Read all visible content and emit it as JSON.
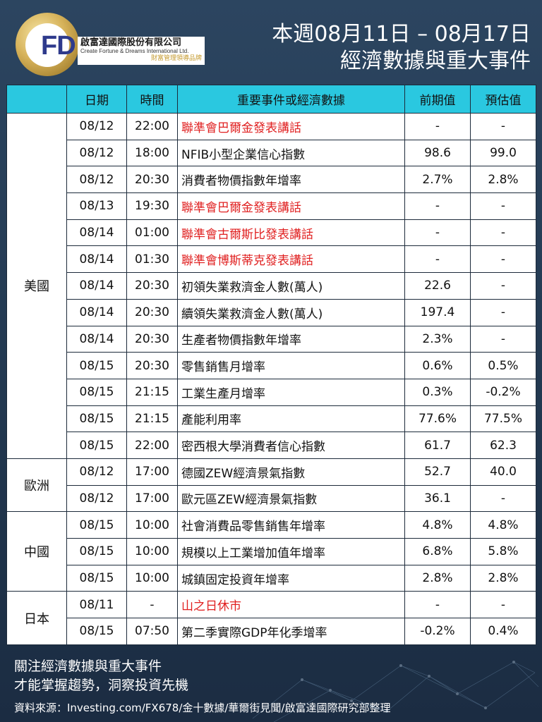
{
  "header": {
    "logo_letters": "FD",
    "company_cn": "啟富達國際股份有限公司",
    "company_en": "Create Fortune & Dreams International Ltd.",
    "company_tag": "財富管理領導品牌",
    "title_line1": "本週08月11日 – 08月17日",
    "title_line2": "經濟數據與重大事件"
  },
  "table": {
    "headers": [
      "日期",
      "時間",
      "重要事件或經濟數據",
      "前期值",
      "預估值"
    ],
    "groups": [
      {
        "region": "美國",
        "rows": [
          {
            "date": "08/12",
            "time": "22:00",
            "event": "聯準會巴爾金發表講話",
            "prev": "-",
            "est": "-",
            "highlight": true
          },
          {
            "date": "08/12",
            "time": "18:00",
            "event": "NFIB小型企業信心指數",
            "prev": "98.6",
            "est": "99.0",
            "highlight": false
          },
          {
            "date": "08/12",
            "time": "20:30",
            "event": "消費者物價指數年增率",
            "prev": "2.7%",
            "est": "2.8%",
            "highlight": false
          },
          {
            "date": "08/13",
            "time": "19:30",
            "event": "聯準會巴爾金發表講話",
            "prev": "-",
            "est": "-",
            "highlight": true
          },
          {
            "date": "08/14",
            "time": "01:00",
            "event": "聯準會古爾斯比發表講話",
            "prev": "-",
            "est": "-",
            "highlight": true
          },
          {
            "date": "08/14",
            "time": "01:30",
            "event": "聯準會博斯蒂克發表講話",
            "prev": "-",
            "est": "-",
            "highlight": true
          },
          {
            "date": "08/14",
            "time": "20:30",
            "event": "初領失業救濟金人數(萬人)",
            "prev": "22.6",
            "est": "-",
            "highlight": false
          },
          {
            "date": "08/14",
            "time": "20:30",
            "event": "續領失業救濟金人數(萬人)",
            "prev": "197.4",
            "est": "-",
            "highlight": false
          },
          {
            "date": "08/14",
            "time": "20:30",
            "event": "生產者物價指數年增率",
            "prev": "2.3%",
            "est": "-",
            "highlight": false
          },
          {
            "date": "08/15",
            "time": "20:30",
            "event": "零售銷售月增率",
            "prev": "0.6%",
            "est": "0.5%",
            "highlight": false
          },
          {
            "date": "08/15",
            "time": "21:15",
            "event": "工業生產月增率",
            "prev": "0.3%",
            "est": "-0.2%",
            "highlight": false
          },
          {
            "date": "08/15",
            "time": "21:15",
            "event": "產能利用率",
            "prev": "77.6%",
            "est": "77.5%",
            "highlight": false
          },
          {
            "date": "08/15",
            "time": "22:00",
            "event": "密西根大學消費者信心指數",
            "prev": "61.7",
            "est": "62.3",
            "highlight": false
          }
        ]
      },
      {
        "region": "歐洲",
        "rows": [
          {
            "date": "08/12",
            "time": "17:00",
            "event": "德國ZEW經濟景氣指數",
            "prev": "52.7",
            "est": "40.0",
            "highlight": false
          },
          {
            "date": "08/12",
            "time": "17:00",
            "event": "歐元區ZEW經濟景氣指數",
            "prev": "36.1",
            "est": "-",
            "highlight": false
          }
        ]
      },
      {
        "region": "中國",
        "rows": [
          {
            "date": "08/15",
            "time": "10:00",
            "event": "社會消費品零售銷售年增率",
            "prev": "4.8%",
            "est": "4.8%",
            "highlight": false
          },
          {
            "date": "08/15",
            "time": "10:00",
            "event": "規模以上工業增加值年增率",
            "prev": "6.8%",
            "est": "5.8%",
            "highlight": false
          },
          {
            "date": "08/15",
            "time": "10:00",
            "event": "城鎮固定投資年增率",
            "prev": "2.8%",
            "est": "2.8%",
            "highlight": false
          }
        ]
      },
      {
        "region": "日本",
        "rows": [
          {
            "date": "08/11",
            "time": "-",
            "event": "山之日休市",
            "prev": "-",
            "est": "-",
            "highlight": true
          },
          {
            "date": "08/15",
            "time": "07:50",
            "event": "第二季實際GDP年化季增率",
            "prev": "-0.2%",
            "est": "0.4%",
            "highlight": false
          }
        ]
      }
    ]
  },
  "footer": {
    "line1": "關注經濟數據與重大事件",
    "line2": "才能掌握趨勢，洞察投資先機",
    "source": "資料來源：Investing.com/FX678/金十數據/華爾街見聞/啟富達國際研究部整理"
  },
  "colors": {
    "header_bg": "#2ac8e0",
    "highlight_text": "#e02020",
    "page_bg": "#2a4058"
  }
}
